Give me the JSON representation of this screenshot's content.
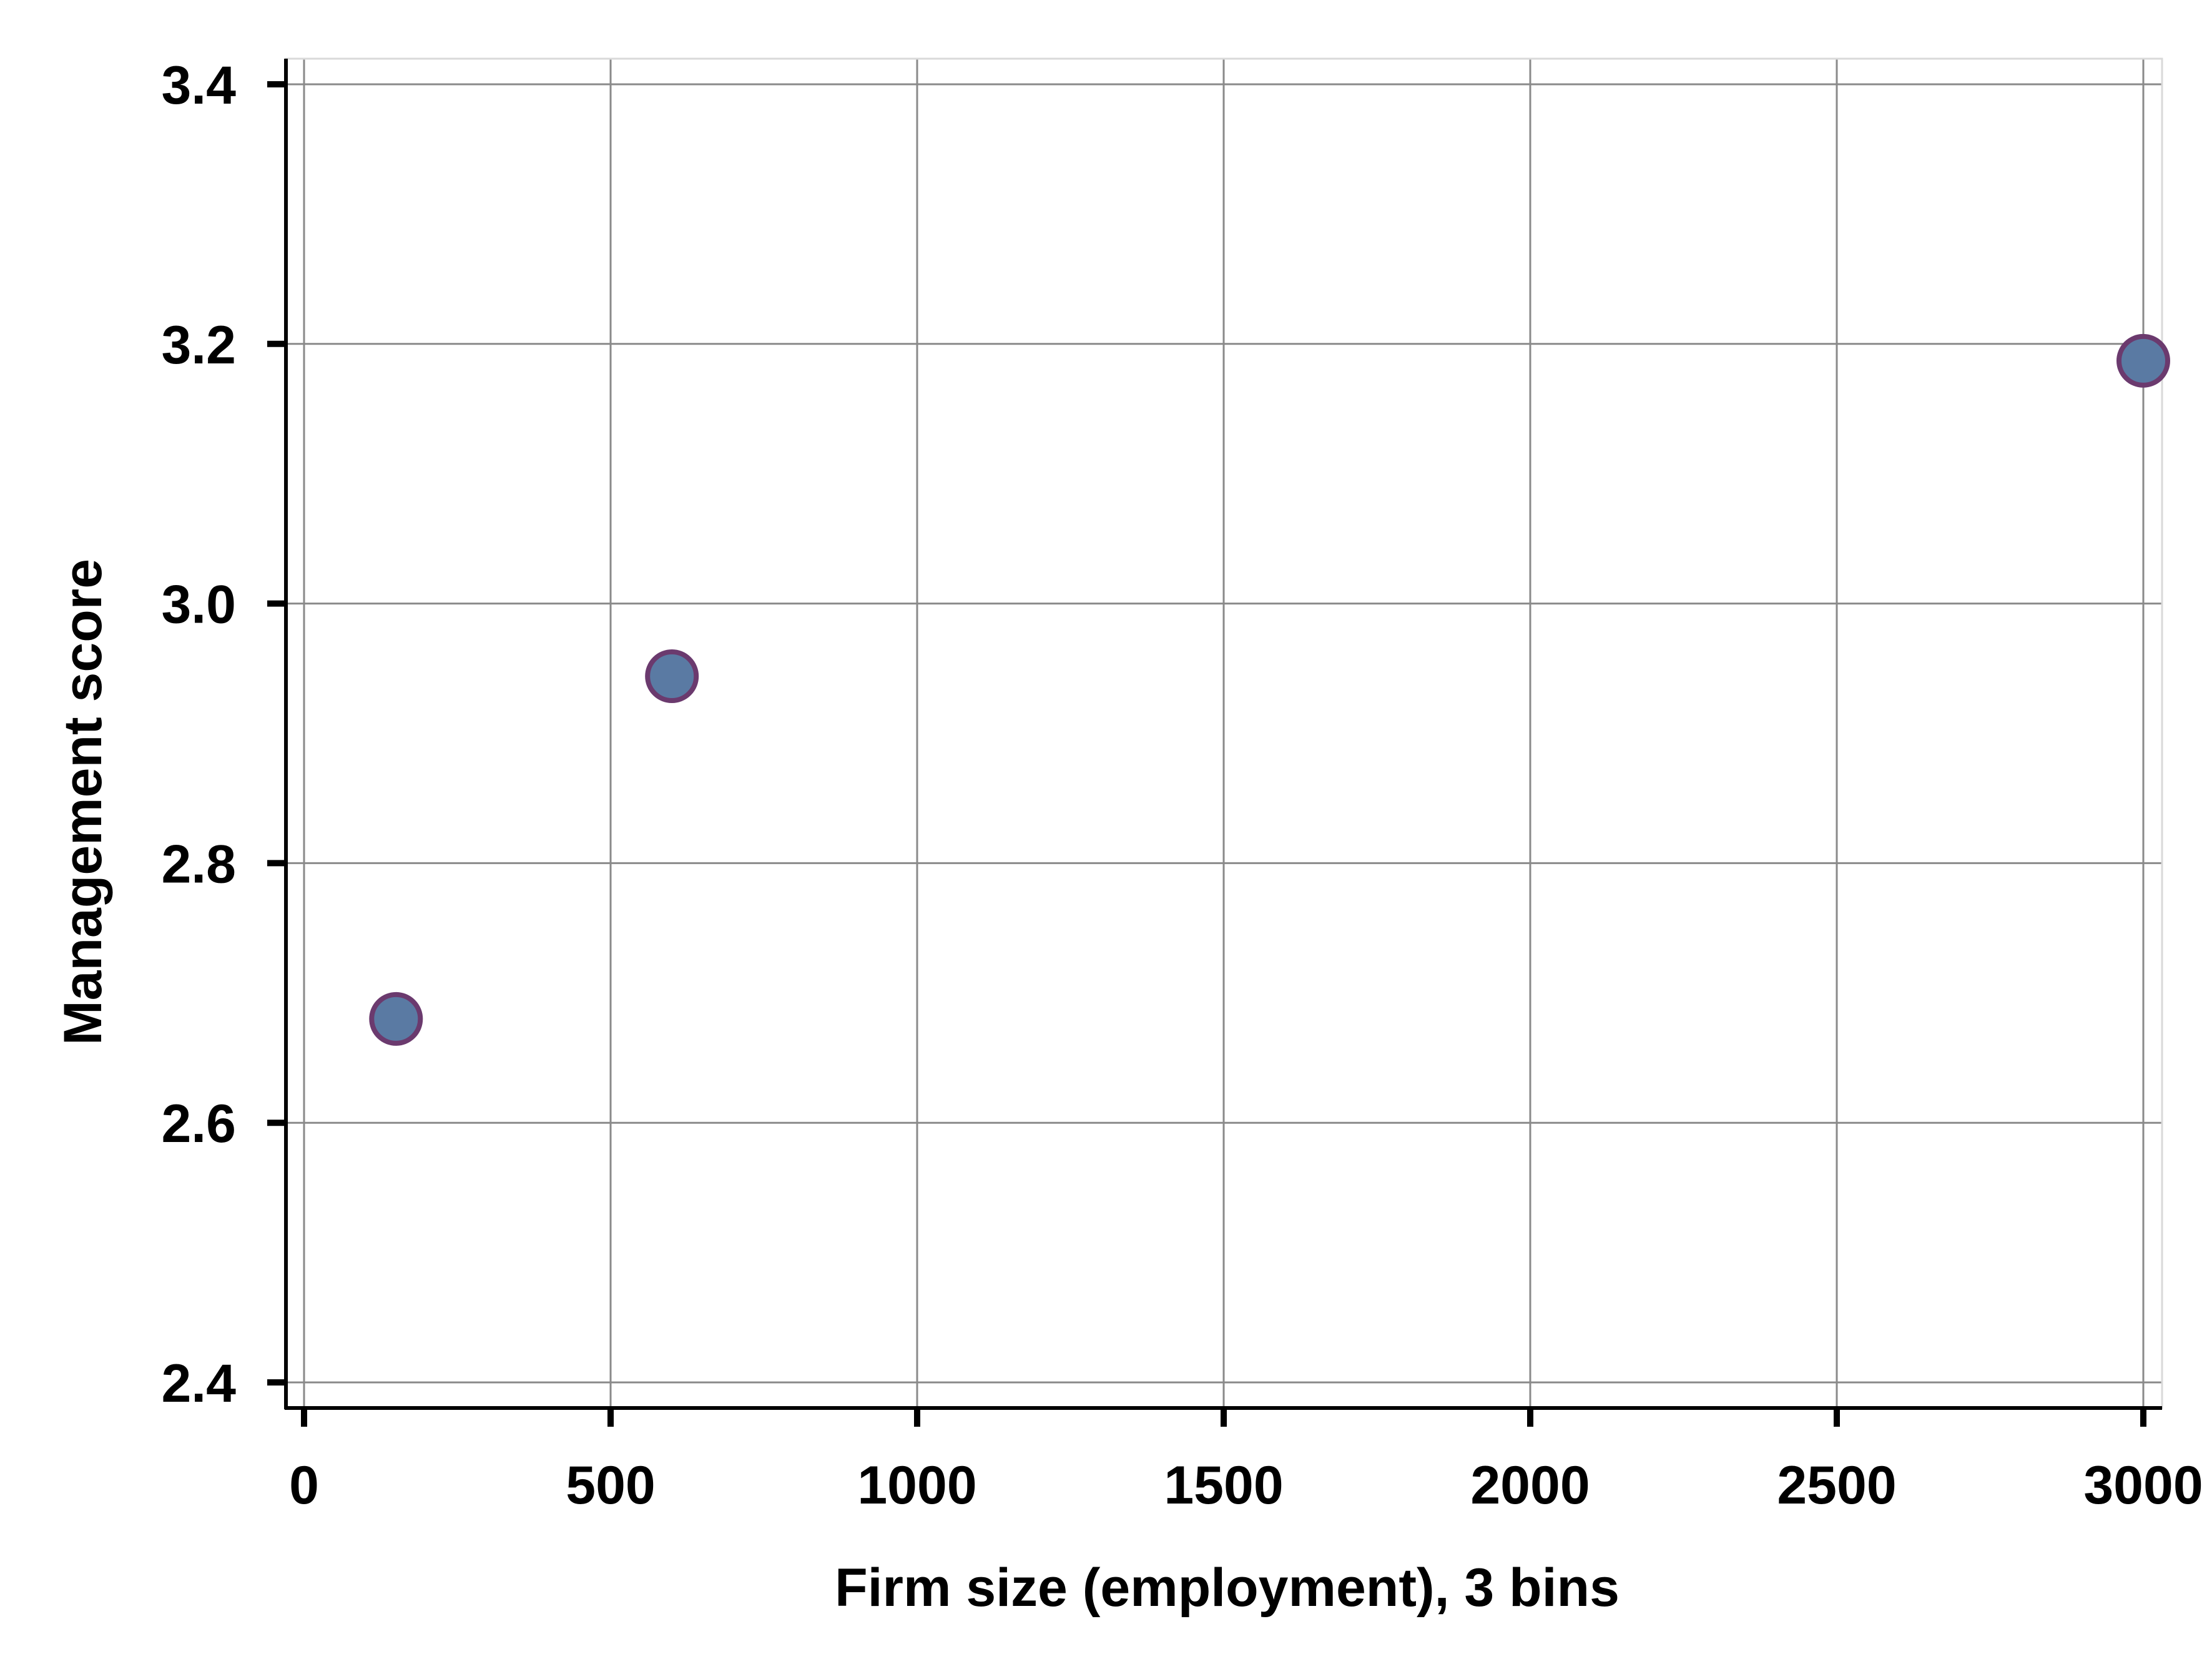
{
  "chart_data": {
    "type": "scatter",
    "title": "",
    "xlabel": "Firm size (employment), 3 bins",
    "ylabel": "Management score",
    "xlim": [
      0,
      3000
    ],
    "ylim": [
      2.4,
      3.4
    ],
    "xticks": [
      0,
      500,
      1000,
      1500,
      2000,
      2500,
      3000
    ],
    "xtick_labels": [
      "0",
      "500",
      "1000",
      "1500",
      "2000",
      "2500",
      "3000"
    ],
    "yticks": [
      2.4,
      2.6,
      2.8,
      3.0,
      3.2,
      3.4
    ],
    "ytick_labels": [
      "2.4",
      "2.6",
      "2.8",
      "3.0",
      "3.2",
      "3.4"
    ],
    "grid": true,
    "legend": "none",
    "series": [
      {
        "points": [
          {
            "x": 150,
            "y": 2.68
          },
          {
            "x": 600,
            "y": 2.944
          },
          {
            "x": 3000,
            "y": 3.187
          }
        ],
        "fill": "#5a7aa3",
        "stroke": "#6b3a6e"
      }
    ],
    "colors": {
      "grid": "#8a8a8a",
      "axis": "#000000",
      "frame": "#d9d9d9"
    }
  }
}
